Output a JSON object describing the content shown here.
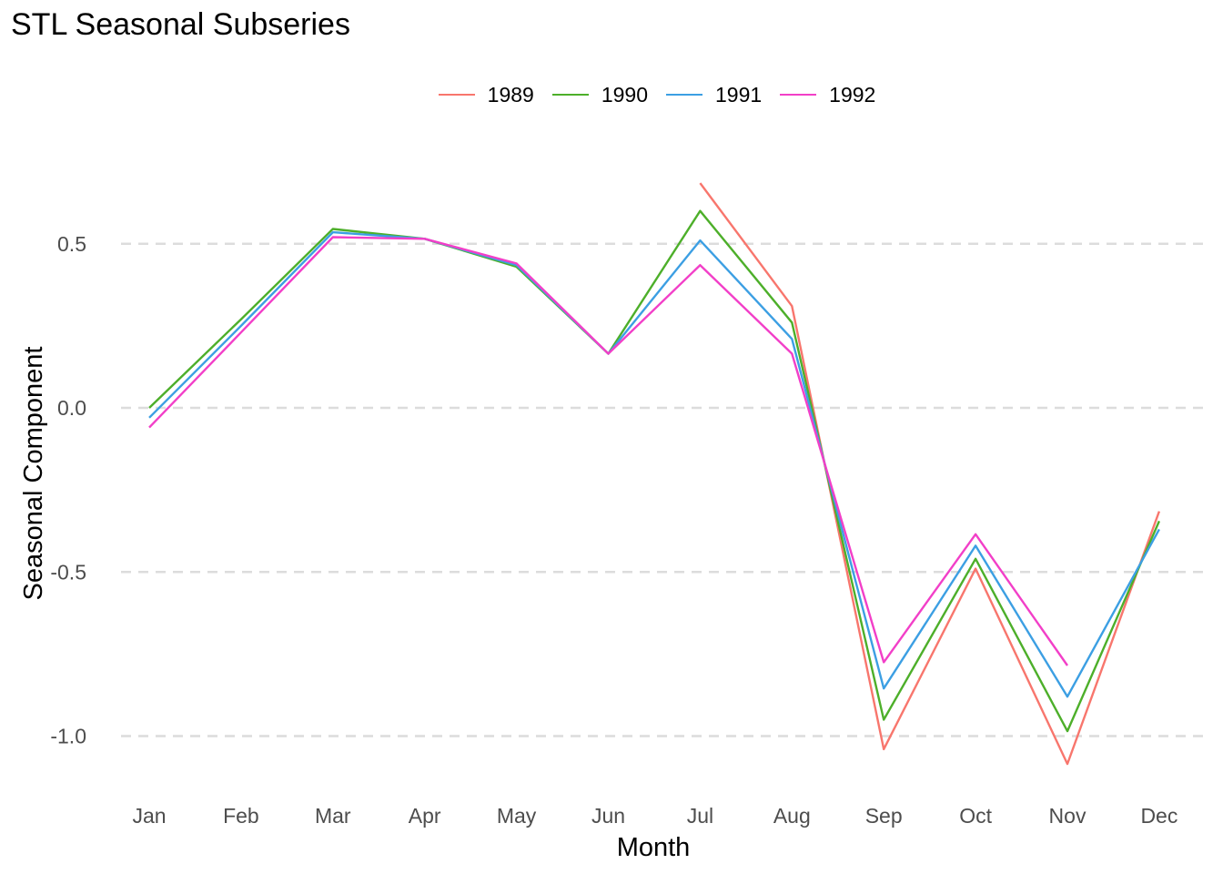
{
  "chart_data": {
    "type": "line",
    "title": "STL Seasonal Subseries",
    "xlabel": "Month",
    "ylabel": "Seasonal Component",
    "categories": [
      "Jan",
      "Feb",
      "Mar",
      "Apr",
      "May",
      "Jun",
      "Jul",
      "Aug",
      "Sep",
      "Oct",
      "Nov",
      "Dec"
    ],
    "ylim": [
      -1.17,
      0.78
    ],
    "yticks": [
      -1.0,
      -0.5,
      0.0,
      0.5
    ],
    "ytick_labels": [
      "-1.0",
      "-0.5",
      "0.0",
      "0.5"
    ],
    "grid": "horizontal dashed",
    "legend_position": "top",
    "series": [
      {
        "name": "1989",
        "color": "#F8766D",
        "values": [
          null,
          null,
          null,
          null,
          null,
          null,
          0.685,
          0.31,
          -1.04,
          -0.49,
          -1.085,
          -0.315
        ]
      },
      {
        "name": "1990",
        "color": "#4DAF2A",
        "values": [
          0.0,
          0.27,
          0.545,
          0.515,
          0.43,
          0.165,
          0.6,
          0.26,
          -0.95,
          -0.46,
          -0.985,
          -0.345
        ]
      },
      {
        "name": "1991",
        "color": "#3C9FE3",
        "values": [
          -0.03,
          0.25,
          0.535,
          0.515,
          0.435,
          0.165,
          0.51,
          0.21,
          -0.855,
          -0.42,
          -0.88,
          -0.37
        ]
      },
      {
        "name": "1992",
        "color": "#F23FC8",
        "values": [
          -0.06,
          0.23,
          0.52,
          0.515,
          0.44,
          0.165,
          0.435,
          0.165,
          -0.775,
          -0.385,
          -0.785,
          null
        ]
      }
    ]
  }
}
